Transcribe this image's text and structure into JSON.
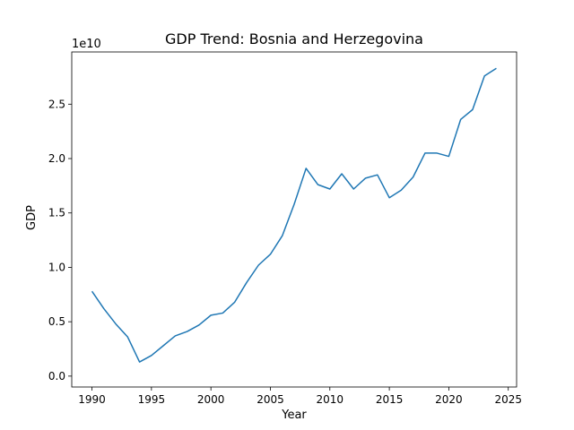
{
  "chart_data": {
    "type": "line",
    "title": "GDP Trend: Bosnia and Herzegovina",
    "xlabel": "Year",
    "ylabel": "GDP",
    "y_offset_label": "1e10",
    "xlim": [
      1988.3,
      2025.7
    ],
    "ylim": [
      -0.1,
      2.98
    ],
    "x_ticks": [
      1990,
      1995,
      2000,
      2005,
      2010,
      2015,
      2020,
      2025
    ],
    "x_tick_labels": [
      "1990",
      "1995",
      "2000",
      "2005",
      "2010",
      "2015",
      "2020",
      "2025"
    ],
    "y_ticks": [
      0,
      0.5,
      1.0,
      1.5,
      2.0,
      2.5
    ],
    "y_tick_labels": [
      "0.0",
      "0.5",
      "1.0",
      "1.5",
      "2.0",
      "2.5"
    ],
    "grid": false,
    "series": [
      {
        "color": "#1f77b4",
        "x": [
          1990,
          1991,
          1992,
          1993,
          1994,
          1995,
          1996,
          1997,
          1998,
          1999,
          2000,
          2001,
          2002,
          2003,
          2004,
          2005,
          2006,
          2007,
          2008,
          2009,
          2010,
          2011,
          2012,
          2013,
          2014,
          2015,
          2016,
          2017,
          2018,
          2019,
          2020,
          2021,
          2022,
          2023,
          2024
        ],
        "y": [
          0.78,
          0.62,
          0.48,
          0.36,
          0.13,
          0.19,
          0.28,
          0.37,
          0.41,
          0.47,
          0.56,
          0.58,
          0.68,
          0.86,
          1.02,
          1.12,
          1.29,
          1.58,
          1.91,
          1.76,
          1.72,
          1.86,
          1.72,
          1.82,
          1.85,
          1.64,
          1.71,
          1.83,
          2.05,
          2.05,
          2.02,
          2.36,
          2.45,
          2.76,
          2.83
        ]
      }
    ]
  }
}
